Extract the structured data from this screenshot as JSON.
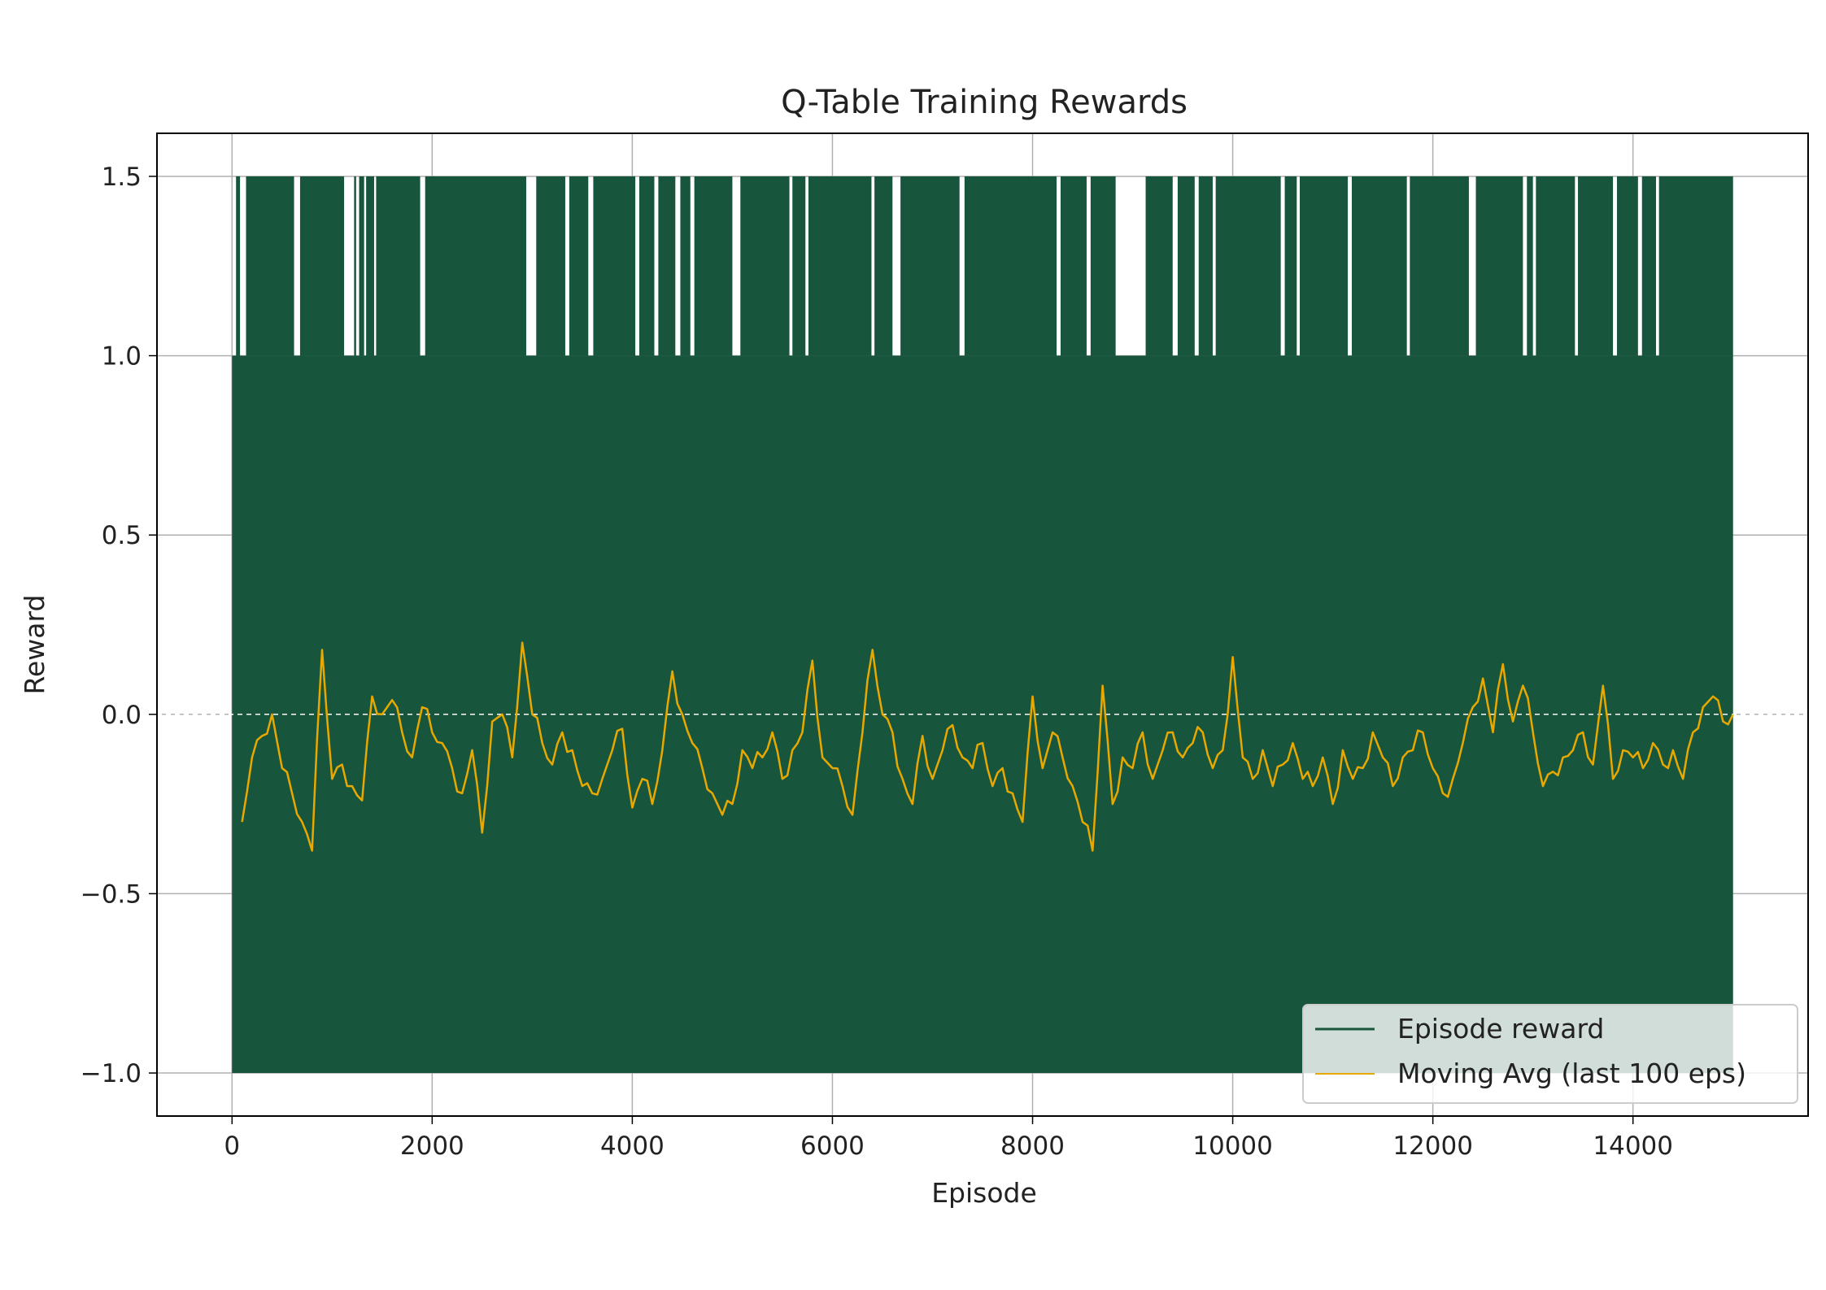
{
  "chart_data": {
    "type": "line",
    "title": "Q-Table Training Rewards",
    "xlabel": "Episode",
    "ylabel": "Reward",
    "xlim": [
      -750,
      15750
    ],
    "ylim": [
      -1.12,
      1.62
    ],
    "xticks": [
      0,
      2000,
      4000,
      6000,
      8000,
      10000,
      12000,
      14000
    ],
    "xtick_labels": [
      "0",
      "2000",
      "4000",
      "6000",
      "8000",
      "10000",
      "12000",
      "14000"
    ],
    "yticks": [
      -1.0,
      -0.5,
      0.0,
      0.5,
      1.0,
      1.5
    ],
    "ytick_labels": [
      "−1.0",
      "−0.5",
      "0.0",
      "0.5",
      "1.0",
      "1.5"
    ],
    "grid": true,
    "legend_position": "lower-right",
    "reference_line": {
      "y": 0.0,
      "style": "dashed"
    },
    "series": [
      {
        "name": "Episode reward",
        "color": "#17563c",
        "episodes": [
          0,
          15000
        ],
        "values_min": -1.0,
        "values_max": 1.0,
        "peak_value": 1.5,
        "peak_gaps": [
          [
            0,
            40
          ],
          [
            80,
            140
          ],
          [
            620,
            680
          ],
          [
            1120,
            1220
          ],
          [
            1240,
            1270
          ],
          [
            1320,
            1340
          ],
          [
            1420,
            1440
          ],
          [
            1880,
            1930
          ],
          [
            2940,
            3040
          ],
          [
            3330,
            3370
          ],
          [
            3560,
            3610
          ],
          [
            4030,
            4070
          ],
          [
            4220,
            4260
          ],
          [
            4430,
            4480
          ],
          [
            4580,
            4620
          ],
          [
            5000,
            5080
          ],
          [
            5570,
            5600
          ],
          [
            5730,
            5760
          ],
          [
            6390,
            6420
          ],
          [
            6600,
            6680
          ],
          [
            7270,
            7320
          ],
          [
            8240,
            8280
          ],
          [
            8540,
            8580
          ],
          [
            8830,
            9130
          ],
          [
            9400,
            9450
          ],
          [
            9620,
            9660
          ],
          [
            9800,
            9830
          ],
          [
            10480,
            10520
          ],
          [
            10640,
            10670
          ],
          [
            11150,
            11190
          ],
          [
            11740,
            11770
          ],
          [
            12360,
            12430
          ],
          [
            12900,
            12940
          ],
          [
            13000,
            13030
          ],
          [
            13420,
            13450
          ],
          [
            13800,
            13840
          ],
          [
            14050,
            14090
          ],
          [
            14230,
            14260
          ]
        ]
      },
      {
        "name": "Moving Avg (last 100 eps)",
        "color": "#e8a800",
        "x": [
          100,
          200,
          300,
          400,
          500,
          600,
          700,
          800,
          900,
          1000,
          1100,
          1200,
          1300,
          1400,
          1500,
          1600,
          1700,
          1800,
          1900,
          2000,
          2100,
          2200,
          2300,
          2400,
          2500,
          2600,
          2700,
          2800,
          2900,
          3000,
          3100,
          3200,
          3300,
          3400,
          3500,
          3600,
          3700,
          3800,
          3900,
          4000,
          4100,
          4200,
          4300,
          4400,
          4500,
          4600,
          4700,
          4800,
          4900,
          5000,
          5100,
          5200,
          5300,
          5400,
          5500,
          5600,
          5700,
          5800,
          5900,
          6000,
          6100,
          6200,
          6300,
          6400,
          6500,
          6600,
          6700,
          6800,
          6900,
          7000,
          7100,
          7200,
          7300,
          7400,
          7500,
          7600,
          7700,
          7800,
          7900,
          8000,
          8100,
          8200,
          8300,
          8400,
          8500,
          8600,
          8700,
          8800,
          8900,
          9000,
          9100,
          9200,
          9300,
          9400,
          9500,
          9600,
          9700,
          9800,
          9900,
          10000,
          10100,
          10200,
          10300,
          10400,
          10500,
          10600,
          10700,
          10800,
          10900,
          11000,
          11100,
          11200,
          11300,
          11400,
          11500,
          11600,
          11700,
          11800,
          11900,
          12000,
          12100,
          12200,
          12300,
          12400,
          12500,
          12600,
          12700,
          12800,
          12900,
          13000,
          13100,
          13200,
          13300,
          13400,
          13500,
          13600,
          13700,
          13800,
          13900,
          14000,
          14100,
          14200,
          14300,
          14400,
          14500,
          14600,
          14700,
          14800,
          14900,
          15000
        ],
        "values": [
          -0.3,
          -0.12,
          -0.06,
          0.0,
          -0.15,
          -0.22,
          -0.3,
          -0.38,
          0.18,
          -0.18,
          -0.14,
          -0.2,
          -0.24,
          0.05,
          0.0,
          0.04,
          -0.05,
          -0.12,
          0.02,
          -0.05,
          -0.08,
          -0.15,
          -0.22,
          -0.1,
          -0.33,
          -0.02,
          0.0,
          -0.12,
          0.2,
          0.0,
          -0.08,
          -0.14,
          -0.05,
          -0.1,
          -0.2,
          -0.22,
          -0.18,
          -0.1,
          -0.04,
          -0.26,
          -0.18,
          -0.25,
          -0.1,
          0.12,
          0.0,
          -0.08,
          -0.15,
          -0.22,
          -0.28,
          -0.25,
          -0.1,
          -0.15,
          -0.12,
          -0.05,
          -0.18,
          -0.1,
          -0.05,
          0.15,
          -0.12,
          -0.15,
          -0.2,
          -0.28,
          -0.05,
          0.18,
          0.0,
          -0.05,
          -0.18,
          -0.25,
          -0.06,
          -0.18,
          -0.1,
          -0.03,
          -0.12,
          -0.15,
          -0.08,
          -0.2,
          -0.15,
          -0.22,
          -0.3,
          0.05,
          -0.15,
          -0.05,
          -0.12,
          -0.2,
          -0.3,
          -0.38,
          0.08,
          -0.25,
          -0.12,
          -0.15,
          -0.05,
          -0.18,
          -0.1,
          -0.05,
          -0.12,
          -0.08,
          -0.05,
          -0.15,
          -0.1,
          0.16,
          -0.12,
          -0.18,
          -0.1,
          -0.2,
          -0.14,
          -0.08,
          -0.18,
          -0.2,
          -0.12,
          -0.25,
          -0.1,
          -0.18,
          -0.15,
          -0.05,
          -0.12,
          -0.2,
          -0.12,
          -0.1,
          -0.05,
          -0.15,
          -0.22,
          -0.18,
          -0.08,
          0.02,
          0.1,
          -0.05,
          0.14,
          -0.02,
          0.08,
          -0.05,
          -0.2,
          -0.16,
          -0.12,
          -0.1,
          -0.05,
          -0.14,
          0.08,
          -0.18,
          -0.1,
          -0.12,
          -0.15,
          -0.08,
          -0.14,
          -0.1,
          -0.18,
          -0.05,
          0.02,
          0.05,
          -0.02,
          0.0
        ]
      }
    ]
  }
}
